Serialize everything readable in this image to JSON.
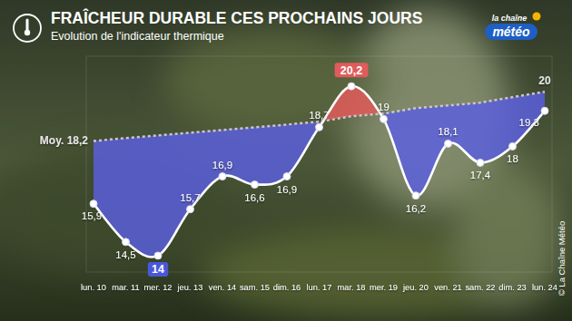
{
  "chart_data": {
    "type": "line",
    "title": "FRAÎCHEUR DURABLE CES PROCHAINS JOURS",
    "subtitle": "Evolution de l'indicateur thermique",
    "annotations": {
      "logo_top": "la chaîne",
      "logo_bottom": "météo",
      "credit": "© La Chaîne Météo"
    },
    "categories": [
      "lun. 10",
      "mar. 11",
      "mer. 12",
      "jeu. 13",
      "ven. 14",
      "sam. 15",
      "dim. 16",
      "lun. 17",
      "mar. 18",
      "mer. 19",
      "jeu. 20",
      "ven. 21",
      "sam. 22",
      "dim. 23",
      "lun. 24"
    ],
    "series": [
      {
        "color": "#ffffff",
        "line_style": "solid",
        "marker": "circle",
        "values": [
          15.9,
          14.5,
          14,
          15.7,
          16.9,
          16.6,
          16.9,
          18.7,
          20.2,
          19,
          16.2,
          18.1,
          17.4,
          18,
          19.3
        ],
        "value_labels": [
          "15,9",
          "14,5",
          "14",
          "15,7",
          "16,9",
          "16,6",
          "16,9",
          "18,7",
          "20,2",
          "19",
          "16,2",
          "18,1",
          "17,4",
          "18",
          "19,3"
        ]
      },
      {
        "color": "#c8c8c8",
        "line_style": "dashed",
        "values": [
          18.2,
          18.3,
          18.4,
          18.5,
          18.6,
          18.7,
          18.8,
          18.9,
          19.1,
          19.2,
          19.4,
          19.5,
          19.6,
          19.8,
          20
        ],
        "value_labels": [
          "Moy. 18,2",
          null,
          null,
          null,
          null,
          null,
          null,
          null,
          null,
          null,
          null,
          null,
          null,
          null,
          "20"
        ]
      }
    ],
    "ylim": [
      13.4,
      21.3
    ],
    "tick_labels": "x",
    "grid": false,
    "data_labels": true
  }
}
